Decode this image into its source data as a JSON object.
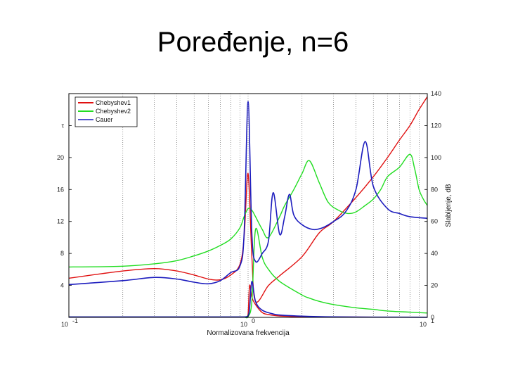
{
  "slide": {
    "title": "Poređenje, n=6"
  },
  "chart_data": {
    "type": "line",
    "title": "Poređenje, n=6",
    "xlabel": "Normalizovana frekvencija",
    "ylabel_right": "Slabljenje, dB",
    "xscale": "log",
    "xlim": [
      0.1,
      10
    ],
    "x_ticks": [
      {
        "base": "10",
        "exp": "-1"
      },
      {
        "base": "10",
        "exp": "0"
      },
      {
        "base": "10",
        "exp": "1"
      }
    ],
    "y_left_ticks": [
      "4",
      "8",
      "12",
      "16",
      "20",
      "τ"
    ],
    "y_left_tick_values": [
      4,
      8,
      12,
      16,
      20,
      24
    ],
    "ylim_left": [
      0,
      28
    ],
    "y_right_ticks": [
      "0",
      "20",
      "40",
      "60",
      "80",
      "100",
      "120",
      "140"
    ],
    "ylim_right": [
      0,
      140
    ],
    "grid": true,
    "grid_style": "dotted",
    "legend_position": "top-left",
    "series": [
      {
        "name": "Chebyshev1",
        "color": "#e01010",
        "axis": "right",
        "x": [
          0.1,
          0.2,
          0.3,
          0.4,
          0.5,
          0.6,
          0.7,
          0.8,
          0.9,
          0.95,
          1.0,
          1.05,
          1.1,
          1.3,
          1.5,
          2.0,
          2.5,
          3.0,
          4.0,
          5.0,
          6.0,
          7.0,
          8.0,
          9.0,
          10.0
        ],
        "y": [
          24.5,
          29,
          30.5,
          29,
          26.5,
          24,
          23.5,
          26.5,
          33,
          50,
          90,
          38,
          10,
          20,
          26,
          38,
          53,
          60,
          75,
          88,
          100,
          111,
          120,
          130,
          138
        ]
      },
      {
        "name": "Chebyshev1",
        "color": "#e01010",
        "axis": "left",
        "x": [
          0.1,
          0.5,
          0.9,
          0.95,
          0.98,
          1.0,
          1.02,
          1.05,
          1.1,
          1.2,
          1.3,
          1.5,
          2.0,
          3.0,
          10.0
        ],
        "y": [
          0.05,
          0.05,
          0.05,
          0.05,
          0.08,
          0.4,
          4.0,
          2.5,
          1.6,
          0.6,
          0.35,
          0.18,
          0.08,
          0.04,
          0.02
        ]
      },
      {
        "name": "Chebyshev2",
        "color": "#22dd22",
        "axis": "right",
        "x": [
          0.1,
          0.2,
          0.3,
          0.4,
          0.5,
          0.6,
          0.7,
          0.8,
          0.9,
          0.95,
          1.0,
          1.05,
          1.1,
          1.2,
          1.3,
          1.5,
          1.6,
          1.8,
          2.0,
          2.2,
          2.5,
          2.8,
          3.2,
          3.6,
          4.0,
          4.5,
          5.0,
          5.5,
          6.0,
          7.0,
          8.0,
          8.5,
          9.0,
          9.5,
          10.0
        ],
        "y": [
          31.5,
          32,
          33.5,
          35.5,
          38.5,
          41.5,
          45,
          49,
          56,
          63,
          68,
          67,
          63,
          55,
          50,
          63,
          70,
          80,
          90,
          98,
          84,
          72,
          67,
          65,
          66,
          70,
          74,
          80,
          88,
          94,
          102,
          93,
          80,
          74,
          70
        ]
      },
      {
        "name": "Chebyshev2",
        "color": "#22dd22",
        "axis": "left",
        "x": [
          0.1,
          0.5,
          0.9,
          0.95,
          1.0,
          1.05,
          1.1,
          1.2,
          1.3,
          1.5,
          2.0,
          2.2,
          2.5,
          3.0,
          4.0,
          5.0,
          6.0,
          8.0,
          10.0
        ],
        "y": [
          0.05,
          0.05,
          0.05,
          0.05,
          0.1,
          2.0,
          11.0,
          7.5,
          6.0,
          4.5,
          2.8,
          2.4,
          2.0,
          1.6,
          1.2,
          1.0,
          0.8,
          0.65,
          0.55
        ]
      },
      {
        "name": "Cauer",
        "color": "#1c1cbe",
        "axis": "right",
        "x": [
          0.1,
          0.2,
          0.3,
          0.4,
          0.5,
          0.6,
          0.7,
          0.8,
          0.9,
          0.95,
          1.0,
          1.05,
          1.1,
          1.2,
          1.3,
          1.38,
          1.5,
          1.6,
          1.7,
          1.8,
          2.0,
          2.3,
          2.6,
          3.0,
          3.5,
          4.0,
          4.5,
          5.0,
          6.0,
          7.0,
          8.0,
          10.0
        ],
        "y": [
          20.5,
          23,
          25,
          24,
          22,
          21,
          23,
          28,
          32,
          52,
          135,
          52,
          35,
          40,
          48,
          78,
          52,
          63,
          77,
          64,
          58,
          55,
          56,
          60,
          66,
          80,
          110,
          82,
          68,
          65,
          63,
          62
        ]
      },
      {
        "name": "Cauer",
        "color": "#1c1cbe",
        "axis": "left",
        "x": [
          0.1,
          0.5,
          0.9,
          0.95,
          1.0,
          1.02,
          1.05,
          1.1,
          1.2,
          1.4,
          1.6,
          2.0,
          3.0,
          5.0,
          10.0
        ],
        "y": [
          0.05,
          0.05,
          0.05,
          0.05,
          0.2,
          1.2,
          4.5,
          2.0,
          0.9,
          0.4,
          0.25,
          0.15,
          0.06,
          0.03,
          0.02
        ]
      }
    ]
  }
}
